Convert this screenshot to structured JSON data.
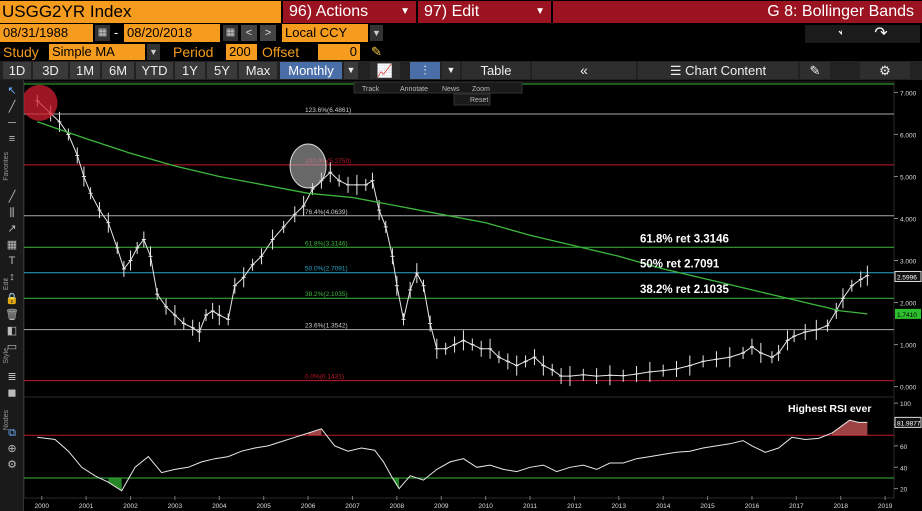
{
  "header": {
    "ticker": "USGG2YR Index",
    "actions_menu": "96) Actions",
    "edit_menu": "97) Edit",
    "chart_title": "G 8: Bollinger Bands"
  },
  "dates": {
    "start": "08/31/1988",
    "separator": "-",
    "end": "08/20/2018",
    "currency": "Local CCY"
  },
  "study": {
    "label": "Study",
    "value": "Simple MA",
    "period_label": "Period",
    "period": "200",
    "offset_label": "Offset",
    "offset": "0"
  },
  "toolbar": {
    "ranges": [
      "1D",
      "3D",
      "1M",
      "6M",
      "YTD",
      "1Y",
      "5Y",
      "Max"
    ],
    "frequency": "Monthly",
    "table_label": "Table",
    "chart_content_label": "Chart Content"
  },
  "chart_toolbar": {
    "track": "Track",
    "annotate": "Annotate",
    "news": "News",
    "zoom": "Zoom",
    "reset": "Reset"
  },
  "sidebar": {
    "favorites": "Favorites",
    "edit": "Edit",
    "style": "Style",
    "nodes": "Nodes"
  },
  "chart_data": [
    {
      "type": "line",
      "title": "",
      "xlabel": "",
      "ylabel": "",
      "x_ticks": [
        "2000",
        "2001",
        "2002",
        "2003",
        "2004",
        "2005",
        "2006",
        "2007",
        "2008",
        "2009",
        "2010",
        "2011",
        "2012",
        "2013",
        "2014",
        "2015",
        "2016",
        "2017",
        "2018",
        "2019"
      ],
      "y_ticks": [
        "7.000",
        "6.000",
        "5.000",
        "4.000",
        "3.000",
        "2.000",
        "1.000",
        "0.000"
      ],
      "ylim": [
        -0.2,
        7.2
      ],
      "xlim": [
        1999.6,
        2019.2
      ],
      "price_points": [
        [
          1999.9,
          6.8
        ],
        [
          2000.2,
          6.5
        ],
        [
          2000.4,
          6.3
        ],
        [
          2000.6,
          6.0
        ],
        [
          2000.8,
          5.5
        ],
        [
          2000.95,
          5.0
        ],
        [
          2001.1,
          4.6
        ],
        [
          2001.3,
          4.2
        ],
        [
          2001.5,
          3.9
        ],
        [
          2001.7,
          3.3
        ],
        [
          2001.85,
          2.8
        ],
        [
          2002.0,
          3.0
        ],
        [
          2002.15,
          3.3
        ],
        [
          2002.3,
          3.5
        ],
        [
          2002.45,
          3.1
        ],
        [
          2002.6,
          2.2
        ],
        [
          2002.8,
          1.9
        ],
        [
          2003.0,
          1.7
        ],
        [
          2003.2,
          1.5
        ],
        [
          2003.4,
          1.4
        ],
        [
          2003.55,
          1.3
        ],
        [
          2003.7,
          1.7
        ],
        [
          2003.85,
          1.8
        ],
        [
          2004.0,
          1.7
        ],
        [
          2004.2,
          1.6
        ],
        [
          2004.35,
          2.4
        ],
        [
          2004.55,
          2.6
        ],
        [
          2004.75,
          2.9
        ],
        [
          2004.95,
          3.1
        ],
        [
          2005.2,
          3.5
        ],
        [
          2005.45,
          3.8
        ],
        [
          2005.7,
          4.1
        ],
        [
          2005.9,
          4.3
        ],
        [
          2006.1,
          4.7
        ],
        [
          2006.3,
          4.9
        ],
        [
          2006.5,
          5.1
        ],
        [
          2006.7,
          4.9
        ],
        [
          2006.9,
          4.8
        ],
        [
          2007.1,
          4.8
        ],
        [
          2007.3,
          4.8
        ],
        [
          2007.45,
          4.9
        ],
        [
          2007.6,
          4.2
        ],
        [
          2007.75,
          3.8
        ],
        [
          2007.9,
          3.1
        ],
        [
          2008.0,
          2.4
        ],
        [
          2008.15,
          1.6
        ],
        [
          2008.3,
          2.3
        ],
        [
          2008.45,
          2.7
        ],
        [
          2008.6,
          2.4
        ],
        [
          2008.75,
          1.5
        ],
        [
          2008.9,
          0.9
        ],
        [
          2009.1,
          0.9
        ],
        [
          2009.3,
          1.0
        ],
        [
          2009.5,
          1.1
        ],
        [
          2009.7,
          1.0
        ],
        [
          2009.9,
          0.9
        ],
        [
          2010.1,
          0.9
        ],
        [
          2010.3,
          0.7
        ],
        [
          2010.5,
          0.6
        ],
        [
          2010.7,
          0.5
        ],
        [
          2010.9,
          0.6
        ],
        [
          2011.1,
          0.7
        ],
        [
          2011.3,
          0.5
        ],
        [
          2011.5,
          0.4
        ],
        [
          2011.7,
          0.25
        ],
        [
          2011.9,
          0.25
        ],
        [
          2012.2,
          0.28
        ],
        [
          2012.5,
          0.25
        ],
        [
          2012.8,
          0.27
        ],
        [
          2013.1,
          0.26
        ],
        [
          2013.4,
          0.3
        ],
        [
          2013.7,
          0.35
        ],
        [
          2014.0,
          0.38
        ],
        [
          2014.3,
          0.42
        ],
        [
          2014.6,
          0.5
        ],
        [
          2014.9,
          0.6
        ],
        [
          2015.2,
          0.65
        ],
        [
          2015.5,
          0.7
        ],
        [
          2015.8,
          0.8
        ],
        [
          2016.0,
          0.95
        ],
        [
          2016.2,
          0.8
        ],
        [
          2016.45,
          0.7
        ],
        [
          2016.6,
          0.8
        ],
        [
          2016.8,
          1.1
        ],
        [
          2016.95,
          1.2
        ],
        [
          2017.2,
          1.3
        ],
        [
          2017.45,
          1.35
        ],
        [
          2017.7,
          1.45
        ],
        [
          2017.9,
          1.8
        ],
        [
          2018.05,
          2.1
        ],
        [
          2018.25,
          2.4
        ],
        [
          2018.45,
          2.55
        ],
        [
          2018.6,
          2.64
        ]
      ],
      "ma_points": [
        [
          1999.9,
          6.3
        ],
        [
          2001.0,
          5.9
        ],
        [
          2002.0,
          5.55
        ],
        [
          2003.0,
          5.25
        ],
        [
          2004.0,
          5.0
        ],
        [
          2005.0,
          4.8
        ],
        [
          2006.0,
          4.6
        ],
        [
          2007.0,
          4.5
        ],
        [
          2008.0,
          4.3
        ],
        [
          2009.0,
          4.1
        ],
        [
          2010.0,
          3.9
        ],
        [
          2011.0,
          3.6
        ],
        [
          2012.0,
          3.35
        ],
        [
          2013.0,
          3.1
        ],
        [
          2014.0,
          2.8
        ],
        [
          2015.0,
          2.55
        ],
        [
          2016.0,
          2.3
        ],
        [
          2017.0,
          2.05
        ],
        [
          2018.0,
          1.8
        ],
        [
          2018.6,
          1.73
        ]
      ],
      "fib_levels": [
        {
          "label": "123.6%(6.4861)",
          "value": 6.4861,
          "color": "#aaaaaa"
        },
        {
          "label": "100.0%(5.2750)",
          "value": 5.275,
          "color": "#c0182c"
        },
        {
          "label": "76.4%(4.0639)",
          "value": 4.0639,
          "color": "#aaaaaa"
        },
        {
          "label": "61.8%(3.3146)",
          "value": 3.3146,
          "color": "#3db83d"
        },
        {
          "label": "50.0%(2.7091)",
          "value": 2.7091,
          "color": "#2aa6c9"
        },
        {
          "label": "38.2%(2.1035)",
          "value": 2.1035,
          "color": "#3db83d"
        },
        {
          "label": "23.6%(1.3542)",
          "value": 1.3542,
          "color": "#aaaaaa"
        },
        {
          "label": "0.0%(0.1431)",
          "value": 0.1431,
          "color": "#c0182c"
        }
      ],
      "annotations": [
        {
          "text": "61.8% ret 3.3146",
          "value": 3.3146
        },
        {
          "text": "50% ret 2.7091",
          "value": 2.7091
        },
        {
          "text": "38.2% ret 2.1035",
          "value": 2.1035
        }
      ],
      "last_price_label": "2.5996",
      "ma_label": "1.7410",
      "top_line_value": 7.2
    },
    {
      "type": "line",
      "title": "",
      "y_ticks": [
        "100",
        "80",
        "60",
        "40",
        "20"
      ],
      "ylim": [
        15,
        102
      ],
      "overbought": 70,
      "oversold": 30,
      "last_label": "81.9877",
      "annotation": "Highest RSI ever",
      "rsi_points": [
        [
          1999.9,
          68
        ],
        [
          2000.3,
          66
        ],
        [
          2000.6,
          55
        ],
        [
          2000.9,
          40
        ],
        [
          2001.2,
          32
        ],
        [
          2001.5,
          26
        ],
        [
          2001.8,
          18
        ],
        [
          2002.1,
          40
        ],
        [
          2002.4,
          50
        ],
        [
          2002.7,
          35
        ],
        [
          2003.0,
          38
        ],
        [
          2003.3,
          40
        ],
        [
          2003.6,
          45
        ],
        [
          2003.9,
          48
        ],
        [
          2004.2,
          50
        ],
        [
          2004.5,
          55
        ],
        [
          2004.8,
          58
        ],
        [
          2005.1,
          60
        ],
        [
          2005.4,
          64
        ],
        [
          2005.7,
          68
        ],
        [
          2006.0,
          72
        ],
        [
          2006.3,
          76
        ],
        [
          2006.6,
          60
        ],
        [
          2006.9,
          55
        ],
        [
          2007.2,
          58
        ],
        [
          2007.5,
          56
        ],
        [
          2007.7,
          45
        ],
        [
          2007.9,
          30
        ],
        [
          2008.05,
          20
        ],
        [
          2008.3,
          32
        ],
        [
          2008.6,
          28
        ],
        [
          2008.9,
          38
        ],
        [
          2009.2,
          45
        ],
        [
          2009.5,
          48
        ],
        [
          2009.8,
          40
        ],
        [
          2010.1,
          42
        ],
        [
          2010.4,
          38
        ],
        [
          2010.7,
          36
        ],
        [
          2011.0,
          40
        ],
        [
          2011.3,
          42
        ],
        [
          2011.6,
          36
        ],
        [
          2011.9,
          40
        ],
        [
          2012.2,
          42
        ],
        [
          2012.5,
          38
        ],
        [
          2012.8,
          44
        ],
        [
          2013.1,
          44
        ],
        [
          2013.4,
          48
        ],
        [
          2013.7,
          50
        ],
        [
          2014.0,
          52
        ],
        [
          2014.3,
          54
        ],
        [
          2014.6,
          55
        ],
        [
          2014.9,
          58
        ],
        [
          2015.2,
          60
        ],
        [
          2015.5,
          62
        ],
        [
          2015.8,
          65
        ],
        [
          2016.0,
          60
        ],
        [
          2016.3,
          54
        ],
        [
          2016.6,
          58
        ],
        [
          2016.9,
          68
        ],
        [
          2017.2,
          66
        ],
        [
          2017.5,
          67
        ],
        [
          2017.8,
          72
        ],
        [
          2018.0,
          78
        ],
        [
          2018.2,
          84
        ],
        [
          2018.4,
          82
        ],
        [
          2018.6,
          81.99
        ]
      ]
    }
  ]
}
